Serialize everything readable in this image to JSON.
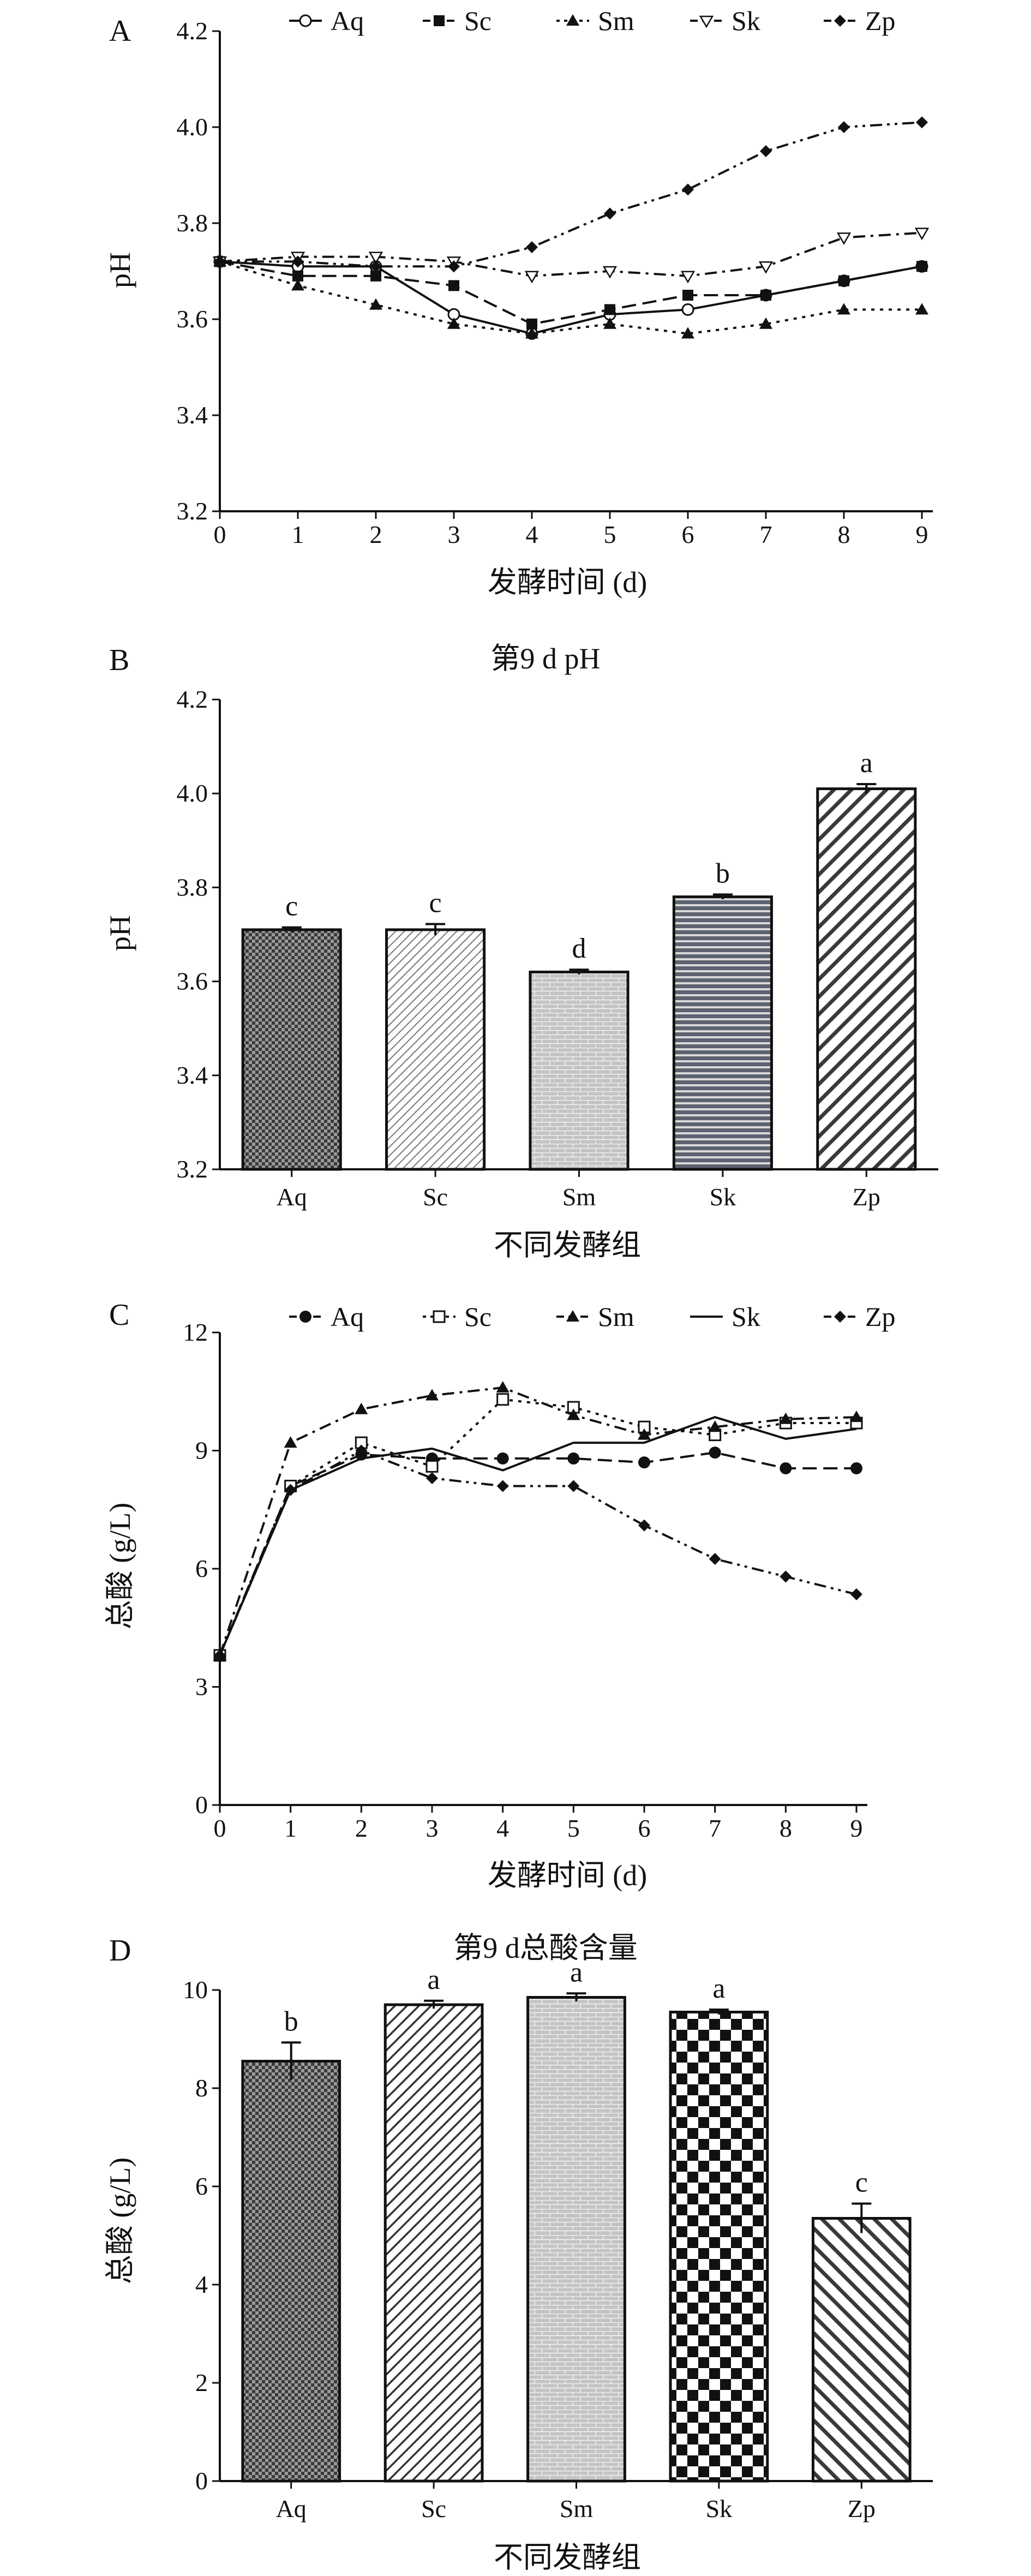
{
  "chart_data": [
    {
      "type": "line",
      "panel": "A",
      "x": [
        0,
        1,
        2,
        3,
        4,
        5,
        6,
        7,
        8,
        9
      ],
      "xlabel": "发酵时间 (d)",
      "ylabel": "pH",
      "xlim": [
        0,
        9
      ],
      "ylim": [
        3.2,
        4.2
      ],
      "yticks": [
        "3.2",
        "3.4",
        "3.6",
        "3.8",
        "4.0",
        "4.2"
      ],
      "legend": "top",
      "series": [
        {
          "name": "Aq",
          "marker": "open-circle",
          "dash": "solid",
          "values": [
            3.72,
            3.71,
            3.71,
            3.61,
            3.57,
            3.61,
            3.62,
            3.65,
            3.68,
            3.71
          ]
        },
        {
          "name": "Sc",
          "marker": "filled-square",
          "dash": "dashed",
          "values": [
            3.72,
            3.69,
            3.69,
            3.67,
            3.59,
            3.62,
            3.65,
            3.65,
            3.68,
            3.71
          ]
        },
        {
          "name": "Sm",
          "marker": "filled-triangle",
          "dash": "dotted",
          "values": [
            3.72,
            3.67,
            3.63,
            3.59,
            3.57,
            3.59,
            3.57,
            3.59,
            3.62,
            3.62
          ]
        },
        {
          "name": "Sk",
          "marker": "open-triangle-down",
          "dash": "dashdot",
          "values": [
            3.72,
            3.73,
            3.73,
            3.72,
            3.69,
            3.7,
            3.69,
            3.71,
            3.77,
            3.78
          ]
        },
        {
          "name": "Zp",
          "marker": "filled-diamond",
          "dash": "dashdotdot",
          "values": [
            3.72,
            3.72,
            3.71,
            3.71,
            3.75,
            3.82,
            3.87,
            3.95,
            4.0,
            4.01
          ]
        }
      ]
    },
    {
      "type": "bar",
      "panel": "B",
      "title": "第9 d pH",
      "categories": [
        "Aq",
        "Sc",
        "Sm",
        "Sk",
        "Zp"
      ],
      "values": [
        3.71,
        3.71,
        3.62,
        3.78,
        4.01
      ],
      "errors": [
        0.005,
        0.012,
        0.005,
        0.005,
        0.01
      ],
      "labels": [
        "c",
        "c",
        "d",
        "b",
        "a"
      ],
      "xlabel": "不同发酵组",
      "ylabel": "pH",
      "ylim": [
        3.2,
        4.2
      ],
      "yticks": [
        "3.2",
        "3.4",
        "3.6",
        "3.8",
        "4.0",
        "4.2"
      ]
    },
    {
      "type": "line",
      "panel": "C",
      "x": [
        0,
        1,
        2,
        3,
        4,
        5,
        6,
        7,
        8,
        9
      ],
      "xlabel": "发酵时间 (d)",
      "ylabel": "总酸 (g/L)",
      "xlim": [
        0,
        9
      ],
      "ylim": [
        0,
        12
      ],
      "yticks": [
        "0",
        "3",
        "6",
        "9",
        "12"
      ],
      "legend": "top",
      "series": [
        {
          "name": "Aq",
          "marker": "filled-circle",
          "dash": "dashed",
          "values": [
            3.8,
            8.1,
            8.9,
            8.8,
            8.8,
            8.8,
            8.7,
            8.95,
            8.55,
            8.55
          ]
        },
        {
          "name": "Sc",
          "marker": "open-square",
          "dash": "dotted",
          "values": [
            3.8,
            8.1,
            9.2,
            8.6,
            10.3,
            10.1,
            9.6,
            9.4,
            9.7,
            9.7
          ]
        },
        {
          "name": "Sm",
          "marker": "filled-triangle",
          "dash": "dashdot",
          "values": [
            3.8,
            9.2,
            10.05,
            10.4,
            10.6,
            9.9,
            9.4,
            9.6,
            9.8,
            9.85
          ]
        },
        {
          "name": "Sk",
          "marker": "none",
          "dash": "solid",
          "values": [
            3.8,
            8.0,
            8.8,
            9.05,
            8.5,
            9.2,
            9.2,
            9.85,
            9.3,
            9.55
          ]
        },
        {
          "name": "Zp",
          "marker": "filled-diamond",
          "dash": "dashdotdot",
          "values": [
            3.8,
            8.0,
            9.0,
            8.3,
            8.1,
            8.1,
            7.1,
            6.25,
            5.8,
            5.35
          ]
        }
      ]
    },
    {
      "type": "bar",
      "panel": "D",
      "title": "第9 d总酸含量",
      "categories": [
        "Aq",
        "Sc",
        "Sm",
        "Sk",
        "Zp"
      ],
      "values": [
        8.55,
        9.7,
        9.85,
        9.55,
        5.35
      ],
      "errors": [
        0.38,
        0.08,
        0.08,
        0.05,
        0.3
      ],
      "labels": [
        "b",
        "a",
        "a",
        "a",
        "c"
      ],
      "xlabel": "不同发酵组",
      "ylabel": "总酸 (g/L)",
      "ylim": [
        0,
        10
      ],
      "yticks": [
        "0",
        "2",
        "4",
        "6",
        "8",
        "10"
      ]
    }
  ]
}
